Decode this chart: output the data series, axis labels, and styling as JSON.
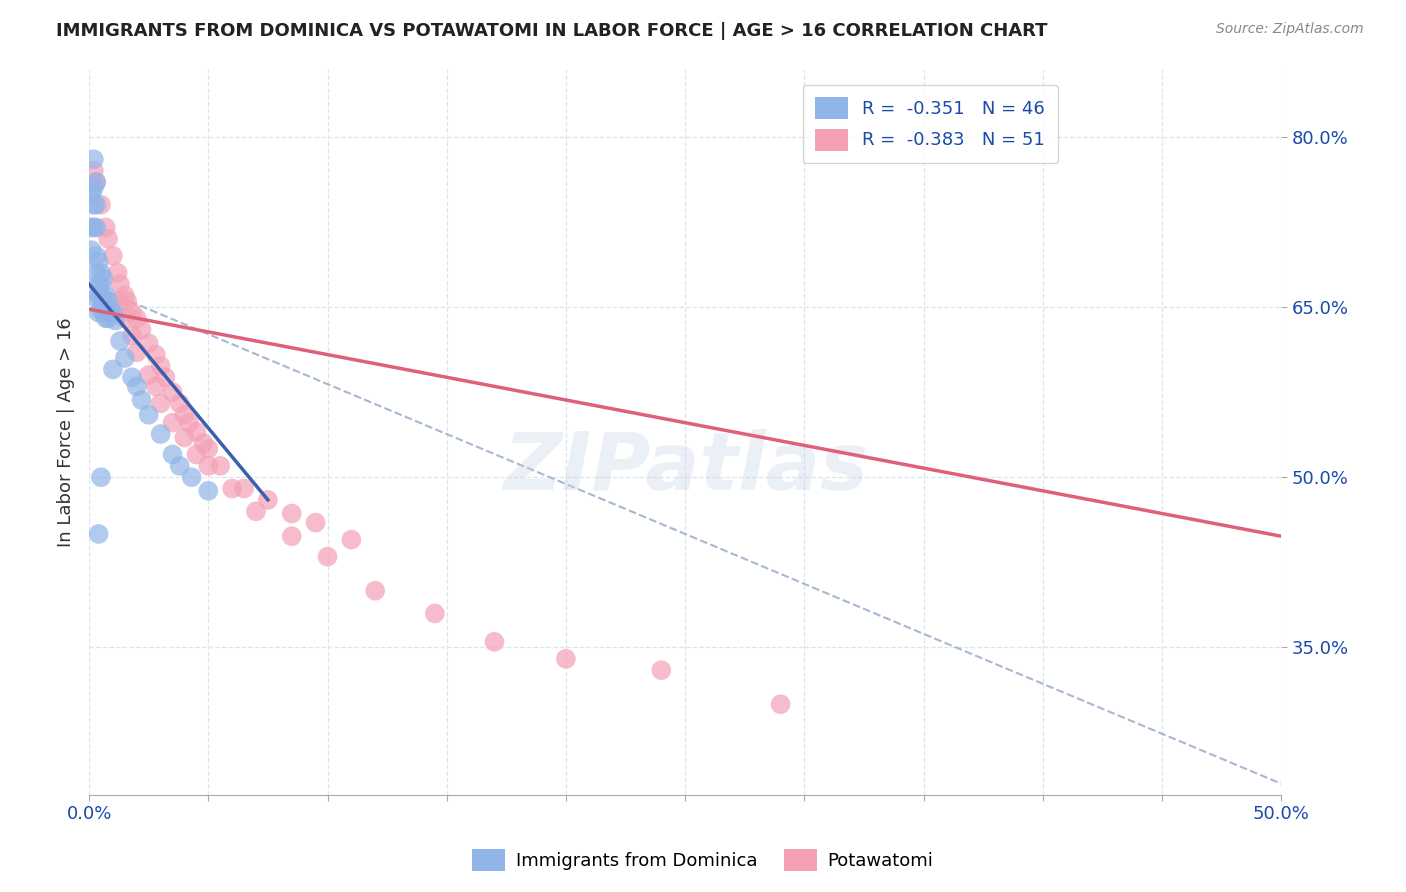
{
  "title": "IMMIGRANTS FROM DOMINICA VS POTAWATOMI IN LABOR FORCE | AGE > 16 CORRELATION CHART",
  "source": "Source: ZipAtlas.com",
  "ylabel": "In Labor Force | Age > 16",
  "x_min": 0.0,
  "x_max": 0.5,
  "y_min": 0.22,
  "y_max": 0.86,
  "x_tick_positions": [
    0.0,
    0.05,
    0.1,
    0.15,
    0.2,
    0.25,
    0.3,
    0.35,
    0.4,
    0.45,
    0.5
  ],
  "x_tick_labels_show": {
    "0.0": "0.0%",
    "0.50": "50.0%"
  },
  "y_ticks_right": [
    0.35,
    0.5,
    0.65,
    0.8
  ],
  "y_tick_labels_right": [
    "35.0%",
    "50.0%",
    "65.0%",
    "80.0%"
  ],
  "blue_R": -0.351,
  "blue_N": 46,
  "pink_R": -0.383,
  "pink_N": 51,
  "blue_color": "#91b4e8",
  "pink_color": "#f4a0b5",
  "blue_line_color": "#3a5fad",
  "pink_line_color": "#e0607a",
  "dashed_line_color": "#a8b8d0",
  "legend_text_color": "#1a4aaa",
  "blue_scatter_x": [
    0.001,
    0.001,
    0.001,
    0.002,
    0.002,
    0.002,
    0.002,
    0.003,
    0.003,
    0.003,
    0.003,
    0.003,
    0.004,
    0.004,
    0.004,
    0.004,
    0.005,
    0.005,
    0.005,
    0.005,
    0.006,
    0.006,
    0.006,
    0.007,
    0.007,
    0.008,
    0.008,
    0.009,
    0.01,
    0.011,
    0.013,
    0.015,
    0.018,
    0.022,
    0.025,
    0.03,
    0.035,
    0.038,
    0.043,
    0.05,
    0.003,
    0.004,
    0.005,
    0.007,
    0.01,
    0.02
  ],
  "blue_scatter_y": [
    0.75,
    0.72,
    0.7,
    0.78,
    0.755,
    0.74,
    0.72,
    0.76,
    0.74,
    0.72,
    0.695,
    0.68,
    0.69,
    0.67,
    0.66,
    0.645,
    0.68,
    0.67,
    0.66,
    0.648,
    0.675,
    0.658,
    0.645,
    0.66,
    0.645,
    0.655,
    0.64,
    0.648,
    0.645,
    0.638,
    0.62,
    0.605,
    0.588,
    0.568,
    0.555,
    0.538,
    0.52,
    0.51,
    0.5,
    0.488,
    0.658,
    0.45,
    0.5,
    0.64,
    0.595,
    0.58
  ],
  "pink_scatter_x": [
    0.002,
    0.003,
    0.005,
    0.007,
    0.008,
    0.01,
    0.012,
    0.013,
    0.015,
    0.016,
    0.018,
    0.02,
    0.022,
    0.025,
    0.028,
    0.03,
    0.032,
    0.035,
    0.038,
    0.04,
    0.042,
    0.045,
    0.048,
    0.05,
    0.055,
    0.065,
    0.075,
    0.085,
    0.095,
    0.11,
    0.013,
    0.015,
    0.018,
    0.02,
    0.025,
    0.028,
    0.03,
    0.035,
    0.04,
    0.045,
    0.05,
    0.06,
    0.07,
    0.085,
    0.1,
    0.12,
    0.145,
    0.17,
    0.2,
    0.24,
    0.29
  ],
  "pink_scatter_y": [
    0.77,
    0.76,
    0.74,
    0.72,
    0.71,
    0.695,
    0.68,
    0.67,
    0.66,
    0.655,
    0.645,
    0.64,
    0.63,
    0.618,
    0.608,
    0.598,
    0.588,
    0.575,
    0.565,
    0.555,
    0.548,
    0.54,
    0.53,
    0.525,
    0.51,
    0.49,
    0.48,
    0.468,
    0.46,
    0.445,
    0.655,
    0.64,
    0.625,
    0.61,
    0.59,
    0.58,
    0.565,
    0.548,
    0.535,
    0.52,
    0.51,
    0.49,
    0.47,
    0.448,
    0.43,
    0.4,
    0.38,
    0.355,
    0.34,
    0.33,
    0.3
  ],
  "blue_trendline_x": [
    0.0,
    0.075
  ],
  "blue_trendline_y": [
    0.67,
    0.48
  ],
  "pink_trendline_x": [
    0.0,
    0.5
  ],
  "pink_trendline_y": [
    0.648,
    0.448
  ],
  "dashed_trendline_x": [
    0.0,
    0.5
  ],
  "dashed_trendline_y": [
    0.67,
    0.23
  ],
  "watermark_line1": "ZIP",
  "watermark_line2": "atlas",
  "background_color": "#ffffff",
  "grid_color": "#dde4ee"
}
